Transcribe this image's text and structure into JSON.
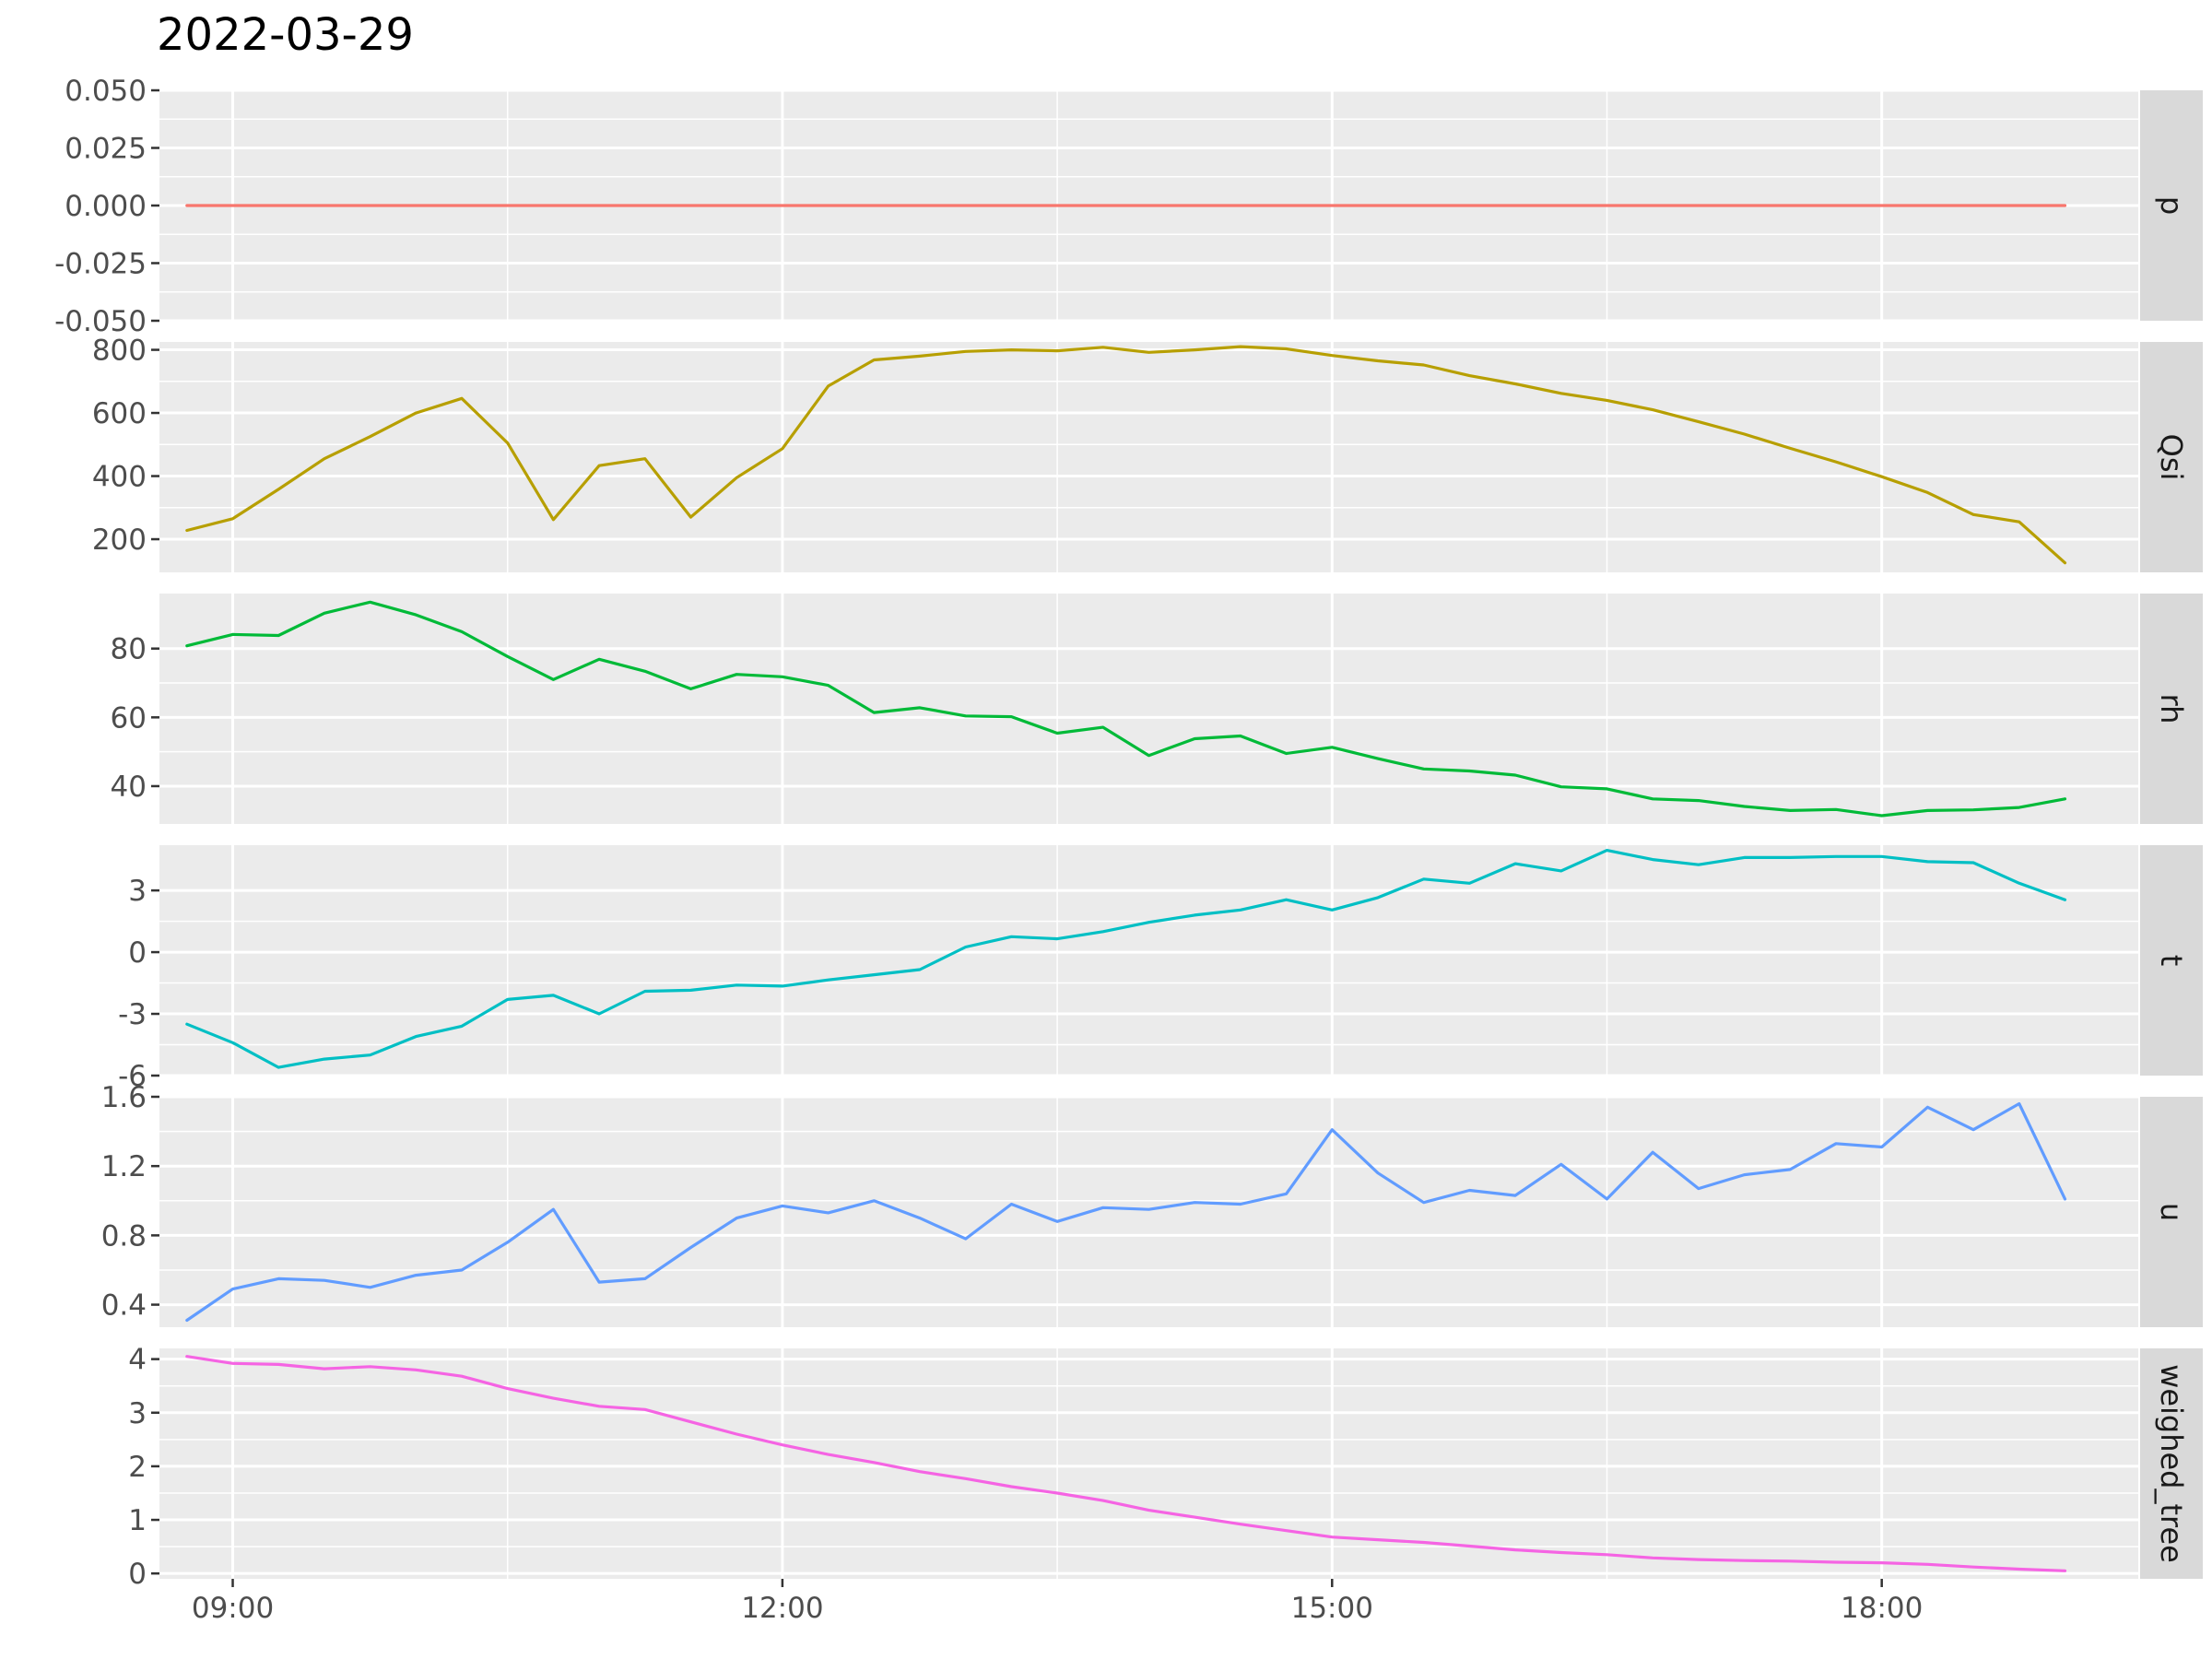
{
  "chart_data": {
    "type": "line",
    "title": "2022-03-29",
    "xlabel": "",
    "ylabel": "",
    "grid": true,
    "legend": "none",
    "x_axis": {
      "range": [
        "08:36",
        "19:24"
      ],
      "ticks": [
        "09:00",
        "12:00",
        "15:00",
        "18:00"
      ]
    },
    "x": [
      "08:45",
      "09:00",
      "09:15",
      "09:30",
      "09:45",
      "10:00",
      "10:15",
      "10:30",
      "10:45",
      "11:00",
      "11:15",
      "11:30",
      "11:45",
      "12:00",
      "12:15",
      "12:30",
      "12:45",
      "13:00",
      "13:15",
      "13:30",
      "13:45",
      "14:00",
      "14:15",
      "14:30",
      "14:45",
      "15:00",
      "15:15",
      "15:30",
      "15:45",
      "16:00",
      "16:15",
      "16:30",
      "16:45",
      "17:00",
      "17:15",
      "17:30",
      "17:45",
      "18:00",
      "18:15",
      "18:30",
      "18:45",
      "19:00"
    ],
    "panels": [
      {
        "name": "p",
        "color": "#F8766D",
        "ylim": [
          -0.05,
          0.05
        ],
        "yticks": [
          "0.050",
          "0.025",
          "0.000",
          "-0.025",
          "-0.050"
        ],
        "ytick_values": [
          0.05,
          0.025,
          0,
          -0.025,
          -0.05
        ],
        "values": [
          0,
          0,
          0,
          0,
          0,
          0,
          0,
          0,
          0,
          0,
          0,
          0,
          0,
          0,
          0,
          0,
          0,
          0,
          0,
          0,
          0,
          0,
          0,
          0,
          0,
          0,
          0,
          0,
          0,
          0,
          0,
          0,
          0,
          0,
          0,
          0,
          0,
          0,
          0,
          0,
          0,
          0
        ]
      },
      {
        "name": "Qsi",
        "color": "#B79F00",
        "ylim": [
          95,
          825
        ],
        "yticks": [
          "800",
          "600",
          "400",
          "200"
        ],
        "ytick_values": [
          800,
          600,
          400,
          200
        ],
        "values": [
          228,
          265,
          358,
          455,
          525,
          600,
          646,
          505,
          262,
          433,
          455,
          270,
          395,
          487,
          685,
          768,
          780,
          795,
          800,
          797,
          808,
          792,
          800,
          810,
          803,
          782,
          765,
          752,
          718,
          692,
          662,
          640,
          610,
          572,
          533,
          488,
          445,
          398,
          348,
          278,
          255,
          125
        ]
      },
      {
        "name": "rh",
        "color": "#00BA38",
        "ylim": [
          29,
          96
        ],
        "yticks": [
          "80",
          "60",
          "40"
        ],
        "ytick_values": [
          80,
          60,
          40
        ],
        "values": [
          80.8,
          84.1,
          83.8,
          90.3,
          93.5,
          89.8,
          84.9,
          77.7,
          71.0,
          76.9,
          73.4,
          68.3,
          72.5,
          71.8,
          69.3,
          61.4,
          62.8,
          60.4,
          60.2,
          55.4,
          57.1,
          48.9,
          53.8,
          54.6,
          49.5,
          51.3,
          48.0,
          45.0,
          44.4,
          43.2,
          39.8,
          39.2,
          36.3,
          35.8,
          34.1,
          32.9,
          33.2,
          31.4,
          32.9,
          33.1,
          33.8,
          36.3
        ]
      },
      {
        "name": "t",
        "color": "#00BFC4",
        "ylim": [
          -6,
          5.2
        ],
        "yticks": [
          "3",
          "0",
          "-3",
          "-6"
        ],
        "ytick_values": [
          3,
          0,
          -3,
          -6
        ],
        "values": [
          -3.5,
          -4.4,
          -5.6,
          -5.2,
          -5.0,
          -4.1,
          -3.6,
          -2.3,
          -2.1,
          -3.0,
          -1.9,
          -1.85,
          -1.6,
          -1.65,
          -1.35,
          -1.1,
          -0.85,
          0.25,
          0.75,
          0.65,
          1.0,
          1.45,
          1.8,
          2.05,
          2.55,
          2.05,
          2.65,
          3.55,
          3.35,
          4.3,
          3.95,
          4.95,
          4.5,
          4.25,
          4.6,
          4.6,
          4.65,
          4.65,
          4.4,
          4.35,
          3.35,
          2.55
        ]
      },
      {
        "name": "u",
        "color": "#619CFF",
        "ylim": [
          0.27,
          1.6
        ],
        "yticks": [
          "1.6",
          "1.2",
          "0.8",
          "0.4"
        ],
        "ytick_values": [
          1.6,
          1.2,
          0.8,
          0.4
        ],
        "values": [
          0.31,
          0.49,
          0.55,
          0.54,
          0.5,
          0.57,
          0.6,
          0.76,
          0.95,
          0.53,
          0.55,
          0.73,
          0.9,
          0.97,
          0.93,
          1.0,
          0.9,
          0.78,
          0.98,
          0.88,
          0.96,
          0.95,
          0.99,
          0.98,
          1.04,
          1.41,
          1.16,
          0.99,
          1.06,
          1.03,
          1.21,
          1.01,
          1.28,
          1.07,
          1.15,
          1.18,
          1.33,
          1.31,
          1.54,
          1.41,
          1.56,
          1.01
        ]
      },
      {
        "name": "weighed_tree",
        "color": "#F564E3",
        "ylim": [
          -0.1,
          4.2
        ],
        "yticks": [
          "4",
          "3",
          "2",
          "1",
          "0"
        ],
        "ytick_values": [
          4,
          3,
          2,
          1,
          0
        ],
        "values": [
          4.05,
          3.92,
          3.9,
          3.82,
          3.86,
          3.8,
          3.68,
          3.45,
          3.27,
          3.12,
          3.06,
          2.83,
          2.6,
          2.4,
          2.22,
          2.07,
          1.9,
          1.77,
          1.62,
          1.5,
          1.36,
          1.18,
          1.05,
          0.92,
          0.8,
          0.68,
          0.63,
          0.58,
          0.51,
          0.44,
          0.39,
          0.35,
          0.29,
          0.26,
          0.24,
          0.23,
          0.21,
          0.2,
          0.17,
          0.12,
          0.08,
          0.05
        ]
      }
    ]
  }
}
